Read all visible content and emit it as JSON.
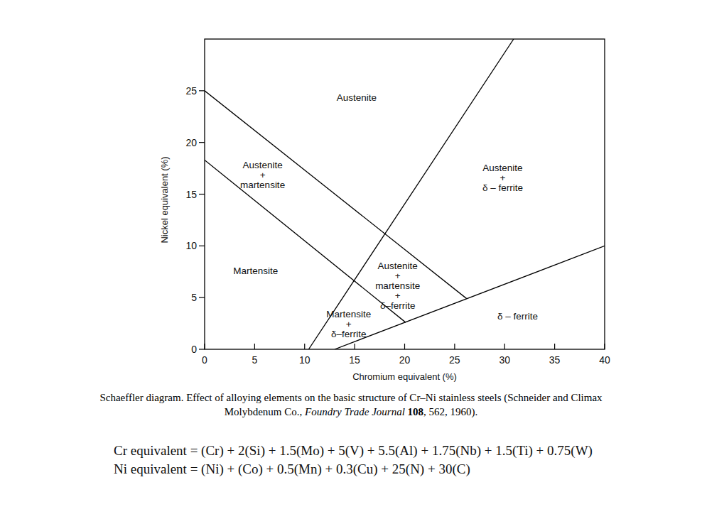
{
  "chart_data": {
    "type": "line",
    "x_label": "Chromium equivalent (%)",
    "y_label": "Nickel equivalent (%)",
    "xlim": [
      0,
      40
    ],
    "ylim": [
      0,
      30
    ],
    "xticks": [
      0,
      5,
      10,
      15,
      20,
      25,
      30,
      35,
      40
    ],
    "yticks": [
      0,
      5,
      10,
      15,
      20,
      25
    ],
    "grid": false,
    "series": [
      {
        "x": [
          0,
          26.2
        ],
        "values": [
          25,
          4.9
        ],
        "color": "#000000"
      },
      {
        "x": [
          0,
          20.1
        ],
        "values": [
          18.3,
          2.6
        ],
        "color": "#000000"
      },
      {
        "x": [
          10.4,
          30.9
        ],
        "values": [
          0,
          30
        ],
        "color": "#000000"
      },
      {
        "x": [
          13,
          40
        ],
        "values": [
          0,
          10
        ],
        "color": "#000000"
      }
    ],
    "annotations": [
      {
        "lines": [
          "Austenite"
        ],
        "x": 15.2,
        "y": 24.4
      },
      {
        "lines": [
          "Austenite",
          "+",
          "martensite"
        ],
        "x": 5.8,
        "y": 16.9
      },
      {
        "lines": [
          "Martensite"
        ],
        "x": 5.1,
        "y": 7.6
      },
      {
        "lines": [
          "Austenite",
          "+",
          "δ – ferrite"
        ],
        "x": 29.8,
        "y": 16.6
      },
      {
        "lines": [
          "Austenite",
          "+",
          "martensite",
          "+",
          "δ–ferrite"
        ],
        "x": 19.3,
        "y": 6.2
      },
      {
        "lines": [
          "Martensite",
          "+",
          "δ–ferrite"
        ],
        "x": 14.4,
        "y": 2.5
      },
      {
        "lines": [
          "δ – ferrite"
        ],
        "x": 31.3,
        "y": 3.2
      }
    ],
    "caption": [
      [
        "Schaeffler diagram. Effect of alloying elements on the basic structure of Cr–Ni stainless steels (Schneider and Climax"
      ],
      [
        "Molybdenum Co., ",
        "Foundry Trade Journal",
        " 108",
        ", 562, 1960)."
      ]
    ],
    "equations": [
      "Cr equivalent = (Cr) + 2(Si) + 1.5(Mo) + 5(V) + 5.5(Al) + 1.75(Nb) + 1.5(Ti) + 0.75(W)",
      "Ni equivalent = (Ni) + (Co) + 0.5(Mn) + 0.3(Cu) + 25(N) + 30(C)"
    ]
  }
}
